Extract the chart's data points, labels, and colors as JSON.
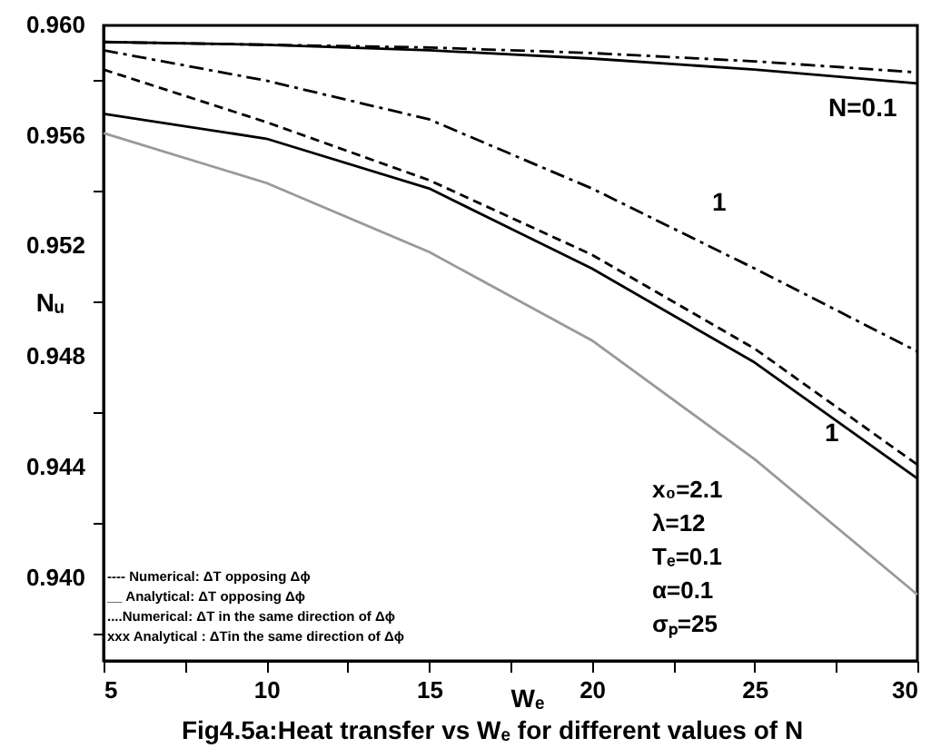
{
  "chart_data": {
    "type": "line",
    "title": "Fig4.5a:Heat transfer vs Wₑ for different values of N",
    "xlabel": "Wₑ",
    "ylabel": "Nᵤ",
    "xlim": [
      5,
      30
    ],
    "ylim": [
      0.937,
      0.96
    ],
    "xticks": [
      5,
      {
        "value": 7.5,
        "label": null
      },
      10,
      {
        "value": 12.5,
        "label": null
      },
      15,
      {
        "value": 17.5,
        "label": null
      },
      20,
      {
        "value": 22.5,
        "label": null
      },
      25,
      {
        "value": 27.5,
        "label": null
      },
      30
    ],
    "yticks": [
      {
        "value": 0.938,
        "label": null
      },
      {
        "value": 0.94,
        "label": "0.940"
      },
      {
        "value": 0.942,
        "label": null
      },
      {
        "value": 0.944,
        "label": "0.944"
      },
      {
        "value": 0.946,
        "label": null
      },
      {
        "value": 0.948,
        "label": "0.948"
      },
      {
        "value": 0.95,
        "label": null
      },
      {
        "value": 0.952,
        "label": "0.952"
      },
      {
        "value": 0.954,
        "label": null
      },
      {
        "value": 0.956,
        "label": "0.956"
      },
      {
        "value": 0.958,
        "label": null
      },
      {
        "value": 0.96,
        "label": "0.960"
      }
    ],
    "x": [
      5,
      10,
      15,
      20,
      25,
      30
    ],
    "series": [
      {
        "color": "#000000",
        "line_style": "solid",
        "values": [
          0.9594,
          0.9593,
          0.9591,
          0.9588,
          0.9584,
          0.9579
        ]
      },
      {
        "color": "#000000",
        "line_style": "dashdot",
        "values": [
          0.9594,
          0.9593,
          0.9592,
          0.959,
          0.9587,
          0.9583
        ]
      },
      {
        "color": "#000000",
        "line_style": "dashdot",
        "values": [
          0.9591,
          0.958,
          0.9566,
          0.9541,
          0.9512,
          0.9482
        ]
      },
      {
        "color": "#000000",
        "line_style": "dashed",
        "values": [
          0.9584,
          0.9565,
          0.9544,
          0.9517,
          0.9483,
          0.9441
        ]
      },
      {
        "color": "#000000",
        "line_style": "solid",
        "values": [
          0.9568,
          0.9559,
          0.9541,
          0.9512,
          0.9478,
          0.9436
        ]
      },
      {
        "color": "#999999",
        "line_style": "solid",
        "values": [
          0.9561,
          0.9543,
          0.9518,
          0.9486,
          0.9443,
          0.9394
        ]
      }
    ],
    "annotations": [
      "---- Numerical: ΔT opposing Δϕ",
      "__   Analytical: ΔT opposing Δϕ",
      "....Numerical: ΔT in the same direction of Δϕ",
      "xxx Analytical : ΔTin the same direction of Δϕ",
      "x₀=2.1",
      "λ=12",
      "Tₑ=0.1",
      "α=0.1",
      "σₚ=25",
      "N=0.1",
      "1",
      "1"
    ],
    "grid": false
  }
}
